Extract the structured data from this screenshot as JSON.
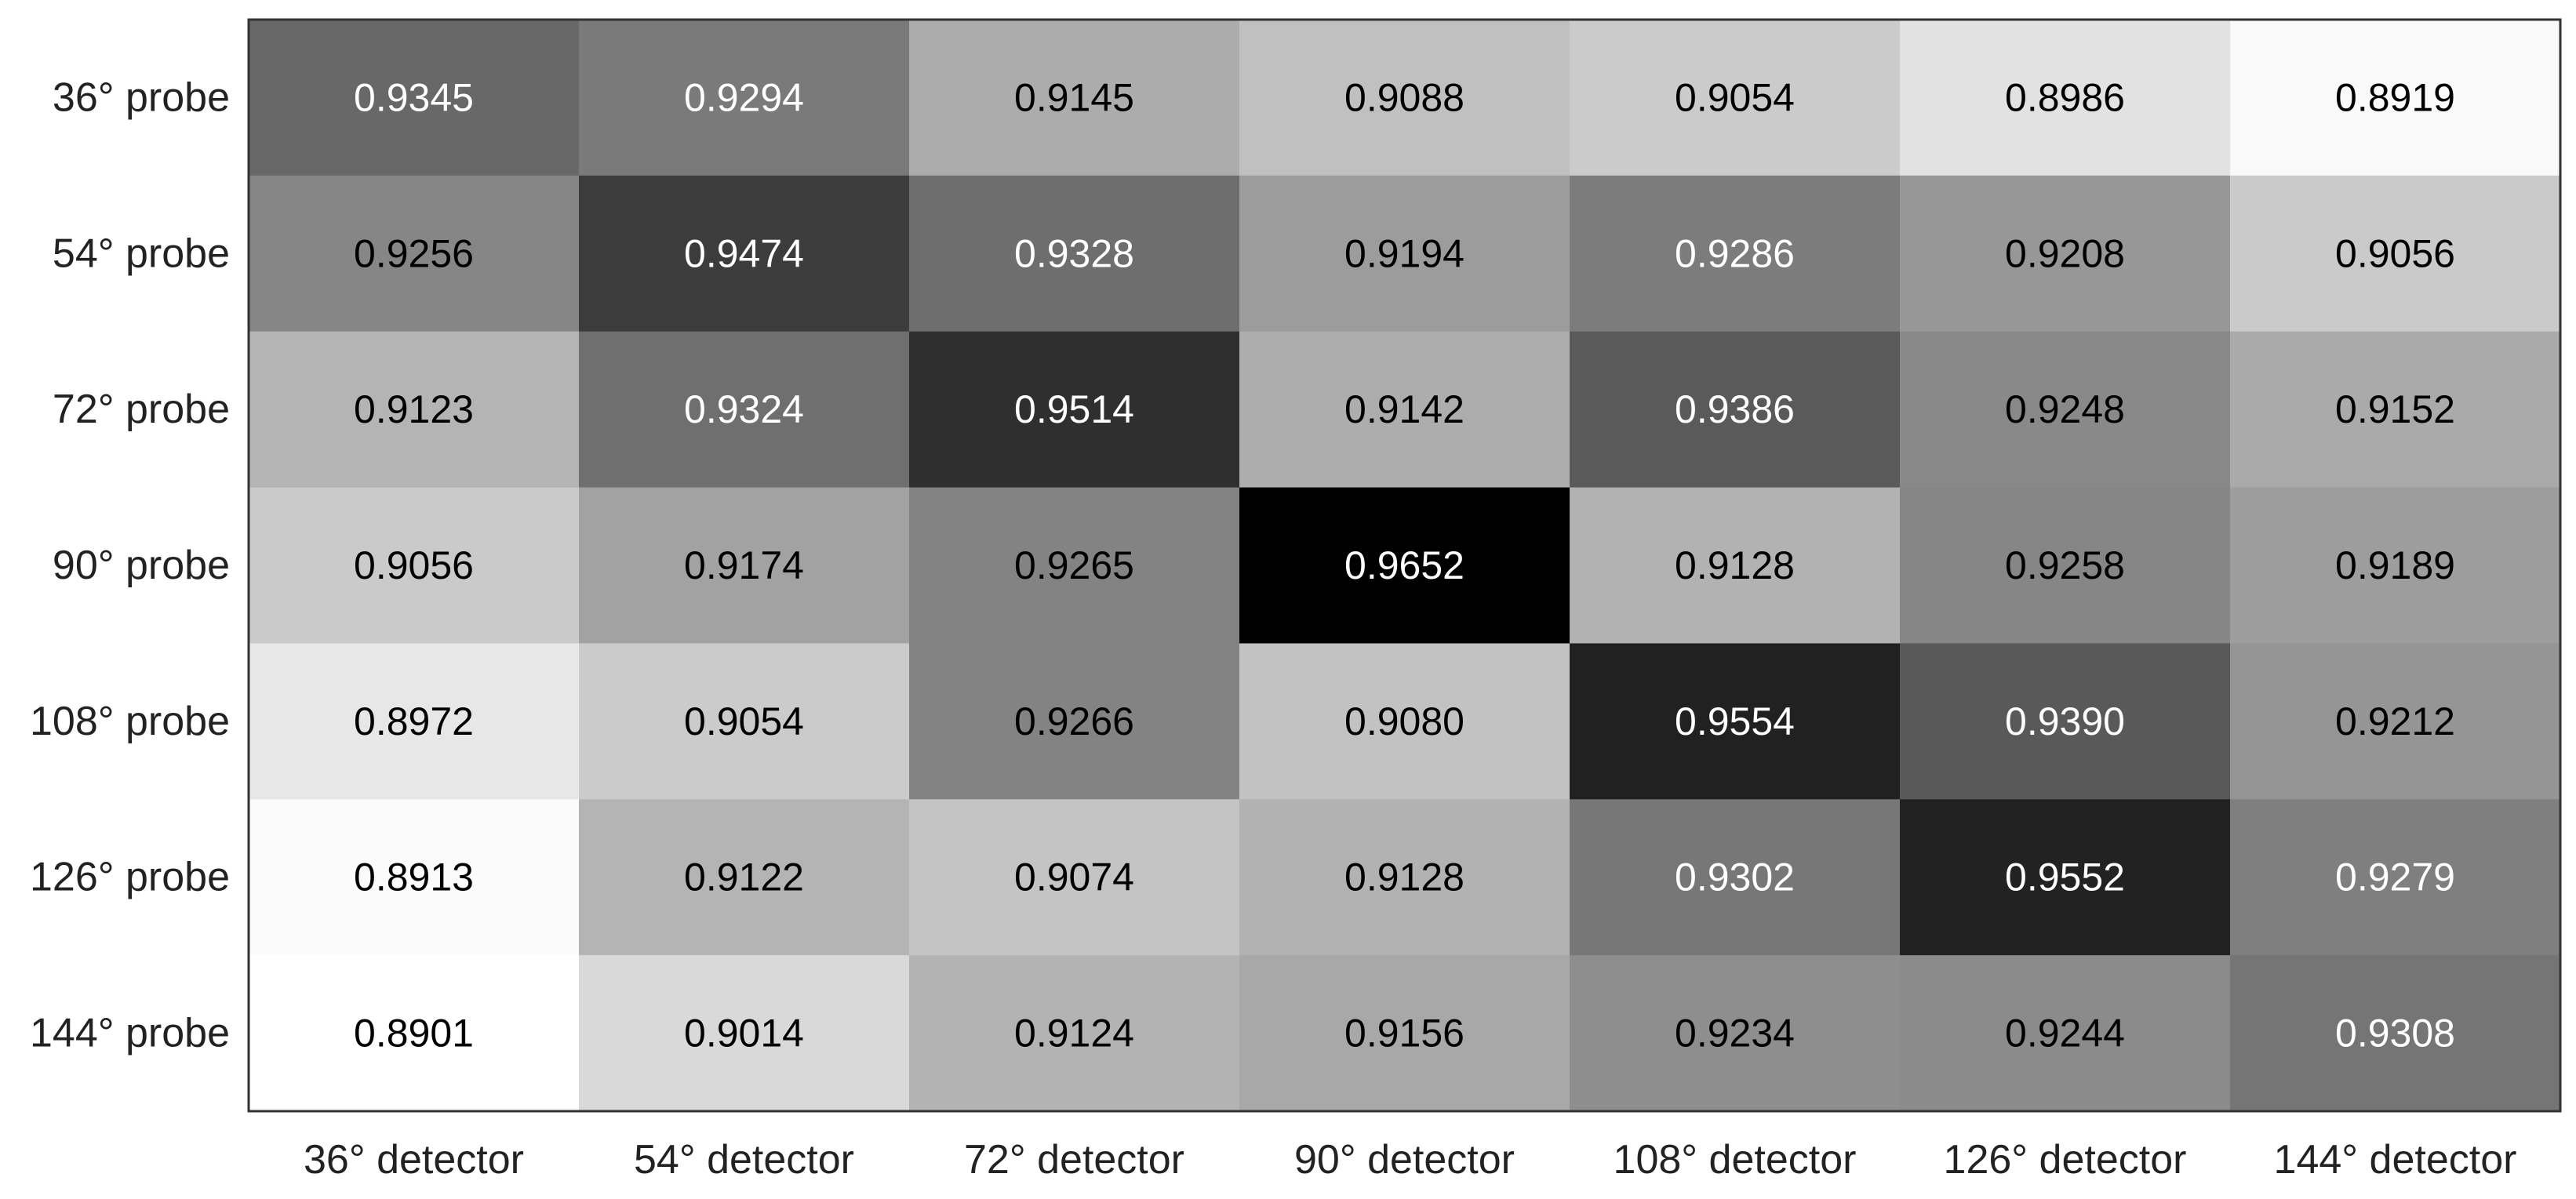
{
  "chart_data": {
    "type": "heatmap",
    "title": "",
    "xlabel": "",
    "ylabel": "",
    "x_categories": [
      "36° detector",
      "54° detector",
      "72° detector",
      "90° detector",
      "108° detector",
      "126° detector",
      "144° detector"
    ],
    "y_categories": [
      "36° probe",
      "54° probe",
      "72° probe",
      "90° probe",
      "108° probe",
      "126° probe",
      "144° probe"
    ],
    "values": [
      [
        0.9345,
        0.9294,
        0.9145,
        0.9088,
        0.9054,
        0.8986,
        0.8919
      ],
      [
        0.9256,
        0.9474,
        0.9328,
        0.9194,
        0.9286,
        0.9208,
        0.9056
      ],
      [
        0.9123,
        0.9324,
        0.9514,
        0.9142,
        0.9386,
        0.9248,
        0.9152
      ],
      [
        0.9056,
        0.9174,
        0.9265,
        0.9652,
        0.9128,
        0.9258,
        0.9189
      ],
      [
        0.8972,
        0.9054,
        0.9266,
        0.908,
        0.9554,
        0.939,
        0.9212
      ],
      [
        0.8913,
        0.9122,
        0.9074,
        0.9128,
        0.9302,
        0.9552,
        0.9279
      ],
      [
        0.8901,
        0.9014,
        0.9124,
        0.9156,
        0.9234,
        0.9244,
        0.9308
      ]
    ],
    "value_format": "4 decimals",
    "color_scale": {
      "type": "grayscale",
      "low_color": "#ffffff",
      "high_color": "#000000"
    },
    "text_colors": {
      "on_dark": "#ffffff",
      "on_light": "#000000"
    },
    "grid": false,
    "legend": "none"
  }
}
